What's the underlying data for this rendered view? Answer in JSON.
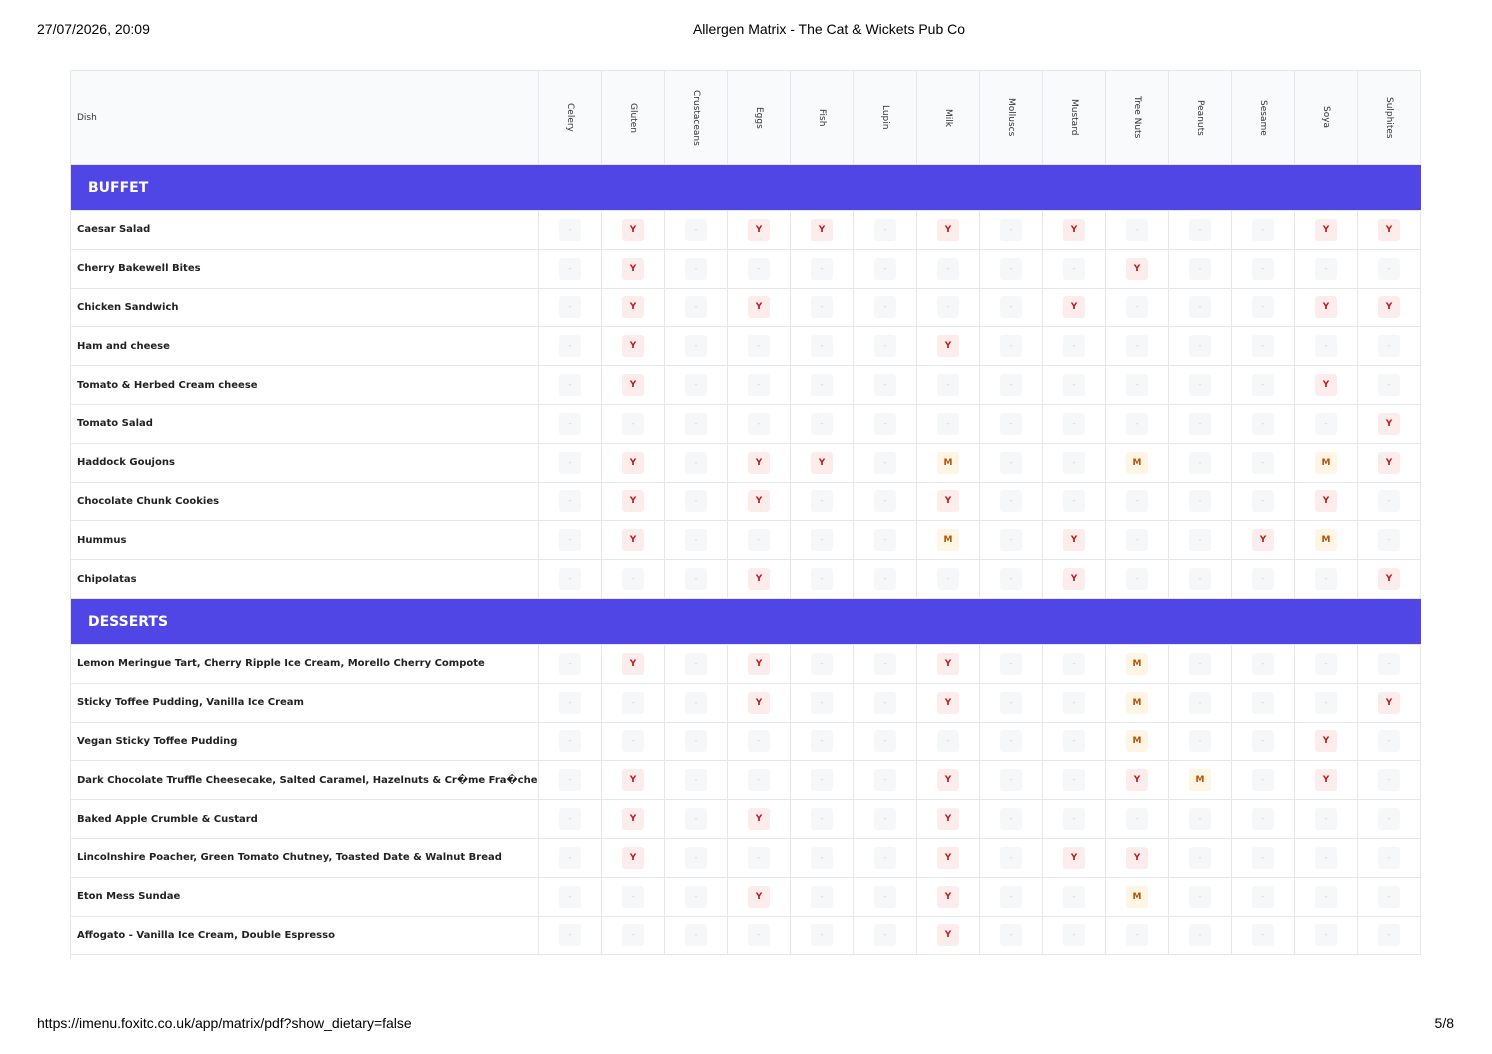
{
  "header": {
    "datetime": "27/07/2026, 20:09",
    "title": "Allergen Matrix - The Cat & Wickets Pub Co"
  },
  "table": {
    "dish_header": "Dish",
    "columns": [
      "Celery",
      "Gluten",
      "Crustaceans",
      "Eggs",
      "Fish",
      "Lupin",
      "Milk",
      "Molluscs",
      "Mustard",
      "Tree Nuts",
      "Peanuts",
      "Sesame",
      "Soya",
      "Sulphites"
    ],
    "sections": [
      {
        "name": "BUFFET",
        "rows": [
          {
            "dish": "Caesar Salad",
            "cells": [
              "-",
              "Y",
              "-",
              "Y",
              "Y",
              "-",
              "Y",
              "-",
              "Y",
              "-",
              "-",
              "-",
              "Y",
              "Y"
            ]
          },
          {
            "dish": "Cherry Bakewell Bites",
            "cells": [
              "-",
              "Y",
              "-",
              "-",
              "-",
              "-",
              "-",
              "-",
              "-",
              "Y",
              "-",
              "-",
              "-",
              "-"
            ]
          },
          {
            "dish": "Chicken Sandwich",
            "cells": [
              "-",
              "Y",
              "-",
              "Y",
              "-",
              "-",
              "-",
              "-",
              "Y",
              "-",
              "-",
              "-",
              "Y",
              "Y"
            ]
          },
          {
            "dish": "Ham and cheese",
            "cells": [
              "-",
              "Y",
              "-",
              "-",
              "-",
              "-",
              "Y",
              "-",
              "-",
              "-",
              "-",
              "-",
              "-",
              "-"
            ]
          },
          {
            "dish": "Tomato & Herbed Cream cheese",
            "cells": [
              "-",
              "Y",
              "-",
              "-",
              "-",
              "-",
              "-",
              "-",
              "-",
              "-",
              "-",
              "-",
              "Y",
              "-"
            ]
          },
          {
            "dish": "Tomato Salad",
            "cells": [
              "-",
              "-",
              "-",
              "-",
              "-",
              "-",
              "-",
              "-",
              "-",
              "-",
              "-",
              "-",
              "-",
              "Y"
            ]
          },
          {
            "dish": "Haddock Goujons",
            "cells": [
              "-",
              "Y",
              "-",
              "Y",
              "Y",
              "-",
              "M",
              "-",
              "-",
              "M",
              "-",
              "-",
              "M",
              "Y"
            ]
          },
          {
            "dish": "Chocolate Chunk Cookies",
            "cells": [
              "-",
              "Y",
              "-",
              "Y",
              "-",
              "-",
              "Y",
              "-",
              "-",
              "-",
              "-",
              "-",
              "Y",
              "-"
            ]
          },
          {
            "dish": "Hummus",
            "cells": [
              "-",
              "Y",
              "-",
              "-",
              "-",
              "-",
              "M",
              "-",
              "Y",
              "-",
              "-",
              "Y",
              "M",
              "-"
            ]
          },
          {
            "dish": "Chipolatas",
            "cells": [
              "-",
              "-",
              "-",
              "Y",
              "-",
              "-",
              "-",
              "-",
              "Y",
              "-",
              "-",
              "-",
              "-",
              "Y"
            ]
          }
        ]
      },
      {
        "name": "DESSERTS",
        "rows": [
          {
            "dish": "Lemon Meringue Tart, Cherry Ripple Ice Cream, Morello Cherry Compote",
            "cells": [
              "-",
              "Y",
              "-",
              "Y",
              "-",
              "-",
              "Y",
              "-",
              "-",
              "M",
              "-",
              "-",
              "-",
              "-"
            ]
          },
          {
            "dish": "Sticky Toffee Pudding, Vanilla Ice Cream",
            "cells": [
              "-",
              "-",
              "-",
              "Y",
              "-",
              "-",
              "Y",
              "-",
              "-",
              "M",
              "-",
              "-",
              "-",
              "Y"
            ]
          },
          {
            "dish": "Vegan Sticky Toffee Pudding",
            "cells": [
              "-",
              "-",
              "-",
              "-",
              "-",
              "-",
              "-",
              "-",
              "-",
              "M",
              "-",
              "-",
              "Y",
              "-"
            ]
          },
          {
            "dish": "Dark Chocolate Truffle Cheesecake, Salted Caramel, Hazelnuts & Cr�me Fra�che",
            "cells": [
              "-",
              "Y",
              "-",
              "-",
              "-",
              "-",
              "Y",
              "-",
              "-",
              "Y",
              "M",
              "-",
              "Y",
              "-"
            ]
          },
          {
            "dish": "Baked Apple Crumble & Custard",
            "cells": [
              "-",
              "Y",
              "-",
              "Y",
              "-",
              "-",
              "Y",
              "-",
              "-",
              "-",
              "-",
              "-",
              "-",
              "-"
            ]
          },
          {
            "dish": "Lincolnshire Poacher, Green Tomato Chutney, Toasted Date & Walnut Bread",
            "cells": [
              "-",
              "Y",
              "-",
              "-",
              "-",
              "-",
              "Y",
              "-",
              "Y",
              "Y",
              "-",
              "-",
              "-",
              "-"
            ]
          },
          {
            "dish": "Eton Mess Sundae",
            "cells": [
              "-",
              "-",
              "-",
              "Y",
              "-",
              "-",
              "Y",
              "-",
              "-",
              "M",
              "-",
              "-",
              "-",
              "-"
            ]
          },
          {
            "dish": "Affogato - Vanilla Ice Cream, Double Espresso",
            "cells": [
              "-",
              "-",
              "-",
              "-",
              "-",
              "-",
              "Y",
              "-",
              "-",
              "-",
              "-",
              "-",
              "-",
              "-"
            ]
          }
        ]
      }
    ]
  },
  "footer": {
    "url": "https://imenu.foxitc.co.uk/app/matrix/pdf?show_dietary=false",
    "page": "5/8"
  }
}
